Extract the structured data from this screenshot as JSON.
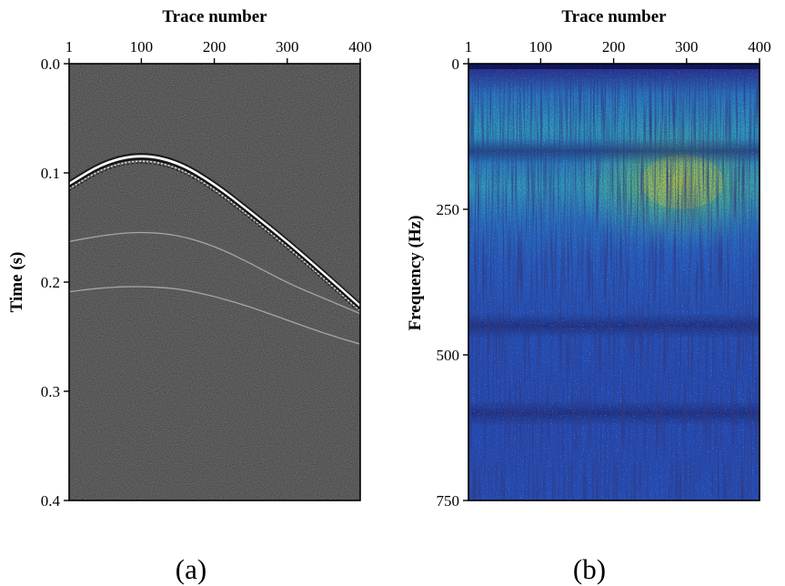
{
  "chart_data": [
    {
      "type": "heatmap",
      "panel": "a",
      "caption": "(a)",
      "xlabel": "Trace number",
      "ylabel": "Time (s)",
      "xlim": [
        1,
        400
      ],
      "ylim": [
        0.0,
        0.4
      ],
      "y_inverted": true,
      "x_axis_position": "top",
      "xticks": [
        1,
        100,
        200,
        300,
        400
      ],
      "xtick_labels": [
        "1",
        "100",
        "200",
        "300",
        "400"
      ],
      "yticks": [
        0.0,
        0.1,
        0.2,
        0.3,
        0.4
      ],
      "ytick_labels": [
        "0.0",
        "0.1",
        "0.2",
        "0.3",
        "0.4"
      ],
      "colormap": "gray",
      "background_color": "#7b7b7b",
      "events": [
        {
          "x": [
            1,
            50,
            100,
            150,
            200,
            250,
            300,
            350,
            400
          ],
          "y": [
            0.11,
            0.09,
            0.083,
            0.09,
            0.11,
            0.136,
            0.163,
            0.192,
            0.222
          ],
          "strength": "strong"
        },
        {
          "x": [
            1,
            50,
            100,
            150,
            200,
            250,
            300,
            350,
            400
          ],
          "y": [
            0.162,
            0.156,
            0.153,
            0.156,
            0.166,
            0.182,
            0.2,
            0.214,
            0.228
          ],
          "strength": "weak"
        },
        {
          "x": [
            1,
            50,
            100,
            150,
            200,
            250,
            300,
            350,
            400
          ],
          "y": [
            0.208,
            0.204,
            0.203,
            0.205,
            0.212,
            0.222,
            0.234,
            0.246,
            0.256
          ],
          "strength": "weak"
        }
      ]
    },
    {
      "type": "heatmap",
      "panel": "b",
      "caption": "(b)",
      "xlabel": "Trace number",
      "ylabel": "Frequency (Hz)",
      "xlim": [
        1,
        400
      ],
      "ylim": [
        0,
        750
      ],
      "y_inverted": true,
      "x_axis_position": "top",
      "xticks": [
        1,
        100,
        200,
        300,
        400
      ],
      "xtick_labels": [
        "1",
        "100",
        "200",
        "300",
        "400"
      ],
      "yticks": [
        0,
        250,
        500,
        750
      ],
      "ytick_labels": [
        "0",
        "250",
        "500",
        "750"
      ],
      "colormap": [
        "#0d0f52",
        "#15268a",
        "#1d44b5",
        "#1f6fc9",
        "#1f9ec2",
        "#33c39a",
        "#86d64f",
        "#d8e021"
      ],
      "energy_peak_band": [
        100,
        270
      ],
      "energy_peak_traces": [
        260,
        400
      ],
      "dark_bands": [
        150,
        450,
        600
      ]
    }
  ]
}
